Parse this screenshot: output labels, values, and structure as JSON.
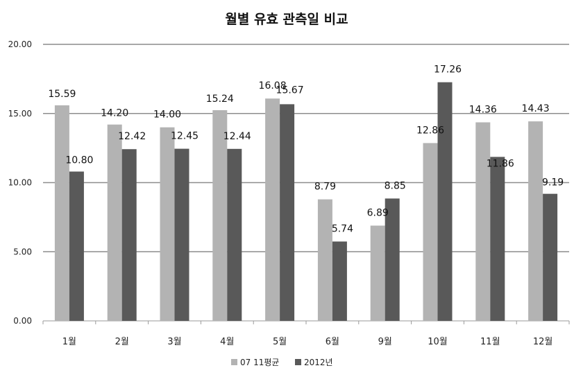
{
  "chart_data": {
    "type": "bar",
    "title": "월별 유효 관측일 비교",
    "xlabel": "",
    "ylabel": "",
    "ylim": [
      0,
      20
    ],
    "yticks": [
      "0.00",
      "5.00",
      "10.00",
      "15.00",
      "20.00"
    ],
    "grid": true,
    "legend_position": "bottom",
    "categories": [
      "1월",
      "2월",
      "3월",
      "4월",
      "5월",
      "6월",
      "9월",
      "10월",
      "11월",
      "12월"
    ],
    "series": [
      {
        "name": "07 11평균",
        "color": "#b3b3b3",
        "values": [
          15.59,
          14.2,
          14.0,
          15.24,
          16.08,
          8.79,
          6.89,
          12.86,
          14.36,
          14.43
        ],
        "labels": [
          "15.59",
          "14.20",
          "14.00",
          "15.24",
          "16.08",
          "8.79",
          "6.89",
          "12.86",
          "14.36",
          "14.43"
        ]
      },
      {
        "name": "2012년",
        "color": "#595959",
        "values": [
          10.8,
          12.42,
          12.45,
          12.44,
          15.67,
          5.74,
          8.85,
          17.26,
          11.86,
          9.19
        ],
        "labels": [
          "10.80",
          "12.42",
          "12.45",
          "12.44",
          "15.67",
          "5.74",
          "8.85",
          "17.26",
          "11.86",
          "9.19"
        ]
      }
    ]
  }
}
